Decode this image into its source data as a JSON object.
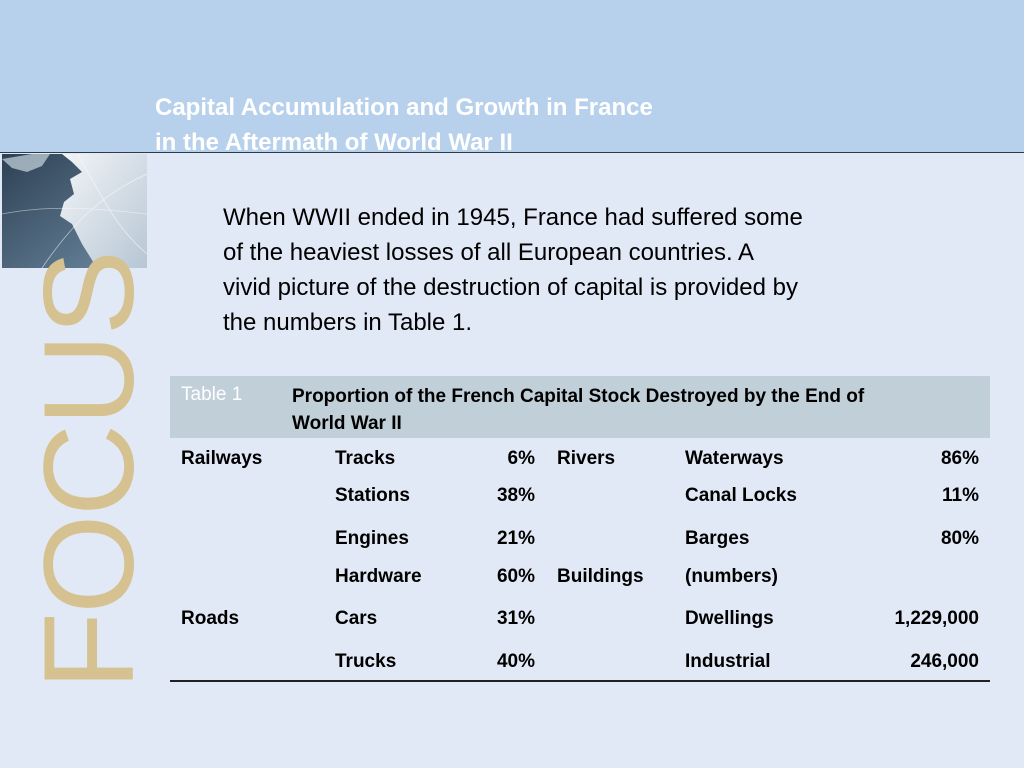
{
  "title": {
    "line1": "Capital Accumulation and Growth in France",
    "line2": "in the Aftermath of World War II"
  },
  "sidebar": {
    "focus_text": "FOCUS"
  },
  "intro": {
    "line1": "When WWII ended in 1945, France had suffered some",
    "line2": "of the heaviest losses of all European countries.  A",
    "line3": "vivid picture of the destruction of capital is provided by",
    "line4": "the numbers in Table 1."
  },
  "table": {
    "label": "Table 1",
    "caption_line1": "Proportion of the French Capital Stock Destroyed by the End of",
    "caption_line2": "World War II",
    "rows": [
      {
        "group": "Railways",
        "item": "Tracks",
        "value": "6%",
        "group2": "Rivers",
        "item2": "Waterways",
        "value2": "86%"
      },
      {
        "group": "",
        "item": "Stations",
        "value": "38%",
        "group2": "",
        "item2": "Canal Locks",
        "value2": "11%"
      },
      {
        "group": "",
        "item": "Engines",
        "value": "21%",
        "group2": "",
        "item2": "Barges",
        "value2": "80%"
      },
      {
        "group": "",
        "item": "Hardware",
        "value": "60%",
        "group2": "Buildings",
        "item2": "(numbers)",
        "value2": ""
      },
      {
        "group": "Roads",
        "item": "Cars",
        "value": "31%",
        "group2": "",
        "item2": "Dwellings",
        "value2": "1,229,000"
      },
      {
        "group": "",
        "item": "Trucks",
        "value": "40%",
        "group2": "",
        "item2": "Industrial",
        "value2": "246,000"
      }
    ]
  }
}
